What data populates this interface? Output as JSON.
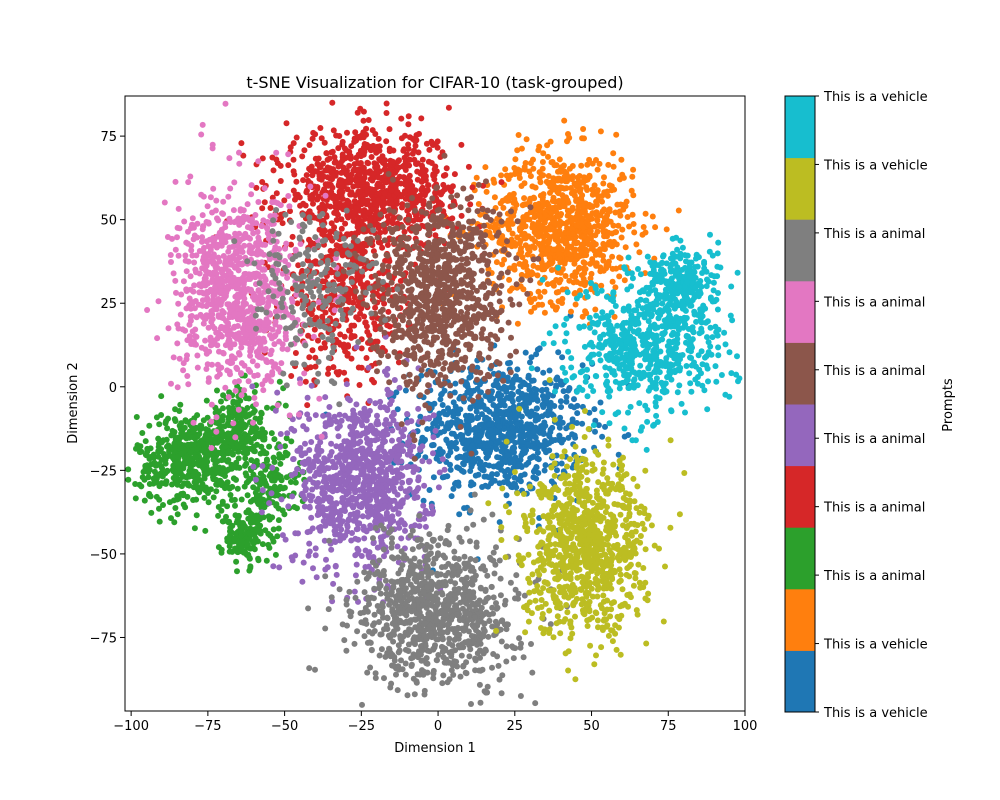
{
  "chart_data": {
    "type": "scatter",
    "title": "t-SNE Visualization for CIFAR-10 (task-grouped)",
    "xlabel": "Dimension 1",
    "ylabel": "Dimension 2",
    "xlim": [
      -102,
      100
    ],
    "ylim": [
      -97,
      87
    ],
    "xticks": [
      -100,
      -75,
      -50,
      -25,
      0,
      25,
      50,
      75,
      100
    ],
    "yticks": [
      -75,
      -50,
      -25,
      0,
      25,
      50,
      75
    ],
    "grid": false,
    "colorbar": {
      "label": "Prompts",
      "entries": [
        {
          "label": "This is a vehicle",
          "color": "#1f77b4"
        },
        {
          "label": "This is a vehicle",
          "color": "#ff7f0e"
        },
        {
          "label": "This is a animal",
          "color": "#2ca02c"
        },
        {
          "label": "This is a animal",
          "color": "#d62728"
        },
        {
          "label": "This is a animal",
          "color": "#9467bd"
        },
        {
          "label": "This is a animal",
          "color": "#8c564b"
        },
        {
          "label": "This is a animal",
          "color": "#e377c2"
        },
        {
          "label": "This is a animal",
          "color": "#7f7f7f"
        },
        {
          "label": "This is a vehicle",
          "color": "#bcbd22"
        },
        {
          "label": "This is a vehicle",
          "color": "#17becf"
        }
      ],
      "tick_labels": [
        "This is a vehicle",
        "This is a vehicle",
        "This is a animal",
        "This is a animal",
        "This is a animal",
        "This is a animal",
        "This is a animal",
        "This is a animal",
        "This is a vehicle",
        "This is a vehicle"
      ]
    },
    "clusters": [
      {
        "color": "#1f77b4",
        "cx": 20,
        "cy": -13,
        "sx": 14,
        "sy": 10,
        "n": 900
      },
      {
        "color": "#ff7f0e",
        "cx": 40,
        "cy": 48,
        "sx": 12,
        "sy": 11,
        "n": 900
      },
      {
        "color": "#2ca02c",
        "cx": -80,
        "cy": -22,
        "sx": 9,
        "sy": 7,
        "n": 500
      },
      {
        "color": "#2ca02c",
        "cx": -63,
        "cy": -45,
        "sx": 4,
        "sy": 4,
        "n": 150
      },
      {
        "color": "#2ca02c",
        "cx": -55,
        "cy": -30,
        "sx": 5,
        "sy": 6,
        "n": 150
      },
      {
        "color": "#2ca02c",
        "cx": -65,
        "cy": -12,
        "sx": 7,
        "sy": 6,
        "n": 200
      },
      {
        "color": "#d62728",
        "cx": -22,
        "cy": 58,
        "sx": 14,
        "sy": 9,
        "n": 900
      },
      {
        "color": "#d62728",
        "cx": -30,
        "cy": 25,
        "sx": 10,
        "sy": 12,
        "n": 400
      },
      {
        "color": "#9467bd",
        "cx": -25,
        "cy": -28,
        "sx": 11,
        "sy": 13,
        "n": 900
      },
      {
        "color": "#8c564b",
        "cx": 0,
        "cy": 28,
        "sx": 11,
        "sy": 14,
        "n": 900
      },
      {
        "color": "#e377c2",
        "cx": -65,
        "cy": 28,
        "sx": 10,
        "sy": 15,
        "n": 900
      },
      {
        "color": "#7f7f7f",
        "cx": 0,
        "cy": -67,
        "sx": 13,
        "sy": 11,
        "n": 900
      },
      {
        "color": "#7f7f7f",
        "cx": -40,
        "cy": 30,
        "sx": 10,
        "sy": 12,
        "n": 200
      },
      {
        "color": "#bcbd22",
        "cx": 48,
        "cy": -48,
        "sx": 10,
        "sy": 13,
        "n": 900
      },
      {
        "color": "#17becf",
        "cx": 68,
        "cy": 12,
        "sx": 12,
        "sy": 10,
        "n": 600
      },
      {
        "color": "#17becf",
        "cx": 80,
        "cy": 30,
        "sx": 6,
        "sy": 6,
        "n": 250
      }
    ]
  }
}
